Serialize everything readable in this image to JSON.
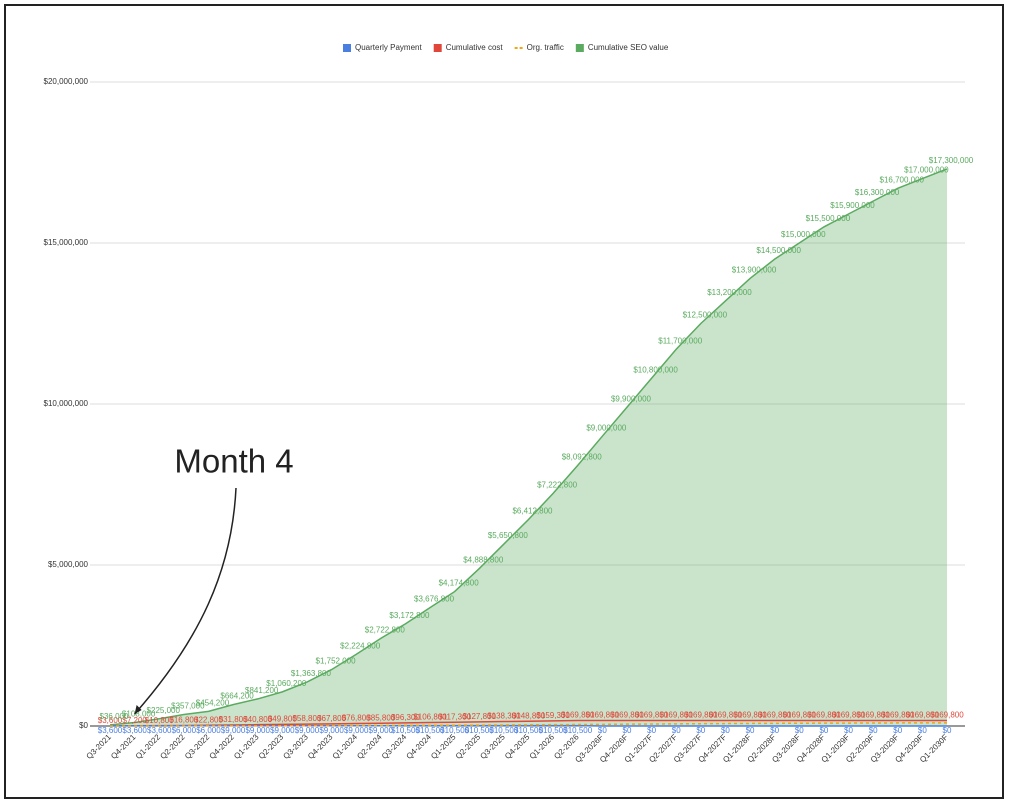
{
  "chart_data": {
    "type": "combo",
    "annotation": "Month 4",
    "categories": [
      "Q3-2021",
      "Q4-2021",
      "Q1-2022",
      "Q2-2022",
      "Q3-2022",
      "Q4-2022",
      "Q1-2023",
      "Q2-2023",
      "Q3-2023",
      "Q4-2023",
      "Q1-2024",
      "Q2-2024",
      "Q3-2024",
      "Q4-2024",
      "Q1-2025",
      "Q2-2025",
      "Q3-2025",
      "Q4-2025",
      "Q1-2026",
      "Q2-2026",
      "Q3-2026F",
      "Q4-2026F",
      "Q1-2027F",
      "Q2-2027F",
      "Q3-2027F",
      "Q4-2027F",
      "Q1-2028F",
      "Q2-2028F",
      "Q3-2028F",
      "Q4-2028F",
      "Q1-2029F",
      "Q2-2029F",
      "Q3-2029F",
      "Q4-2029F",
      "Q1-2030F"
    ],
    "ylim": [
      0,
      20000000
    ],
    "yticks": [
      {
        "value": 0,
        "label": "$0"
      },
      {
        "value": 5000000,
        "label": "$5,000,000"
      },
      {
        "value": 10000000,
        "label": "$10,000,000"
      },
      {
        "value": 15000000,
        "label": "$15,000,000"
      },
      {
        "value": 20000000,
        "label": "$20,000,000"
      }
    ],
    "grid": true,
    "legend": "top",
    "series": [
      {
        "name": "Quarterly Payment",
        "type": "line",
        "color": "#4a7fe0",
        "values": [
          3600,
          3600,
          3600,
          6000,
          6000,
          9000,
          9000,
          9000,
          9000,
          9000,
          9000,
          9000,
          10500,
          10500,
          10500,
          10500,
          10500,
          10500,
          10500,
          10500,
          0,
          0,
          0,
          0,
          0,
          0,
          0,
          0,
          0,
          0,
          0,
          0,
          0,
          0,
          0
        ],
        "value_labels": [
          "$3,600",
          "$3,600",
          "$3,600",
          "$6,000",
          "$6,000",
          "$9,000",
          "$9,000",
          "$9,000",
          "$9,000",
          "$9,000",
          "$9,000",
          "$9,000",
          "$10,500",
          "$10,500",
          "$10,500",
          "$10,500",
          "$10,500",
          "$10,500",
          "$10,500",
          "$10,500",
          "$0",
          "$0",
          "$0",
          "$0",
          "$0",
          "$0",
          "$0",
          "$0",
          "$0",
          "$0",
          "$0",
          "$0",
          "$0",
          "$0",
          "$0"
        ]
      },
      {
        "name": "Cumulative cost",
        "type": "line",
        "color": "#e0473a",
        "values": [
          3600,
          7200,
          10800,
          16800,
          22800,
          31800,
          40800,
          49800,
          58800,
          67800,
          76800,
          85800,
          96300,
          106800,
          117300,
          127800,
          138300,
          148800,
          159300,
          169800,
          169800,
          169800,
          169800,
          169800,
          169800,
          169800,
          169800,
          169800,
          169800,
          169800,
          169800,
          169800,
          169800,
          169800,
          169800
        ],
        "value_labels": [
          "$3,600",
          "$7,200",
          "$10,800",
          "$16,800",
          "$22,800",
          "$31,800",
          "$40,800",
          "$49,800",
          "$58,800",
          "$67,800",
          "$76,800",
          "$85,800",
          "$96,300",
          "$106,800",
          "$117,300",
          "$127,800",
          "$138,300",
          "$148,800",
          "$159,300",
          "$169,800",
          "$169,800",
          "$169,800",
          "$169,800",
          "$169,800",
          "$169,800",
          "$169,800",
          "$169,800",
          "$169,800",
          "$169,800",
          "$169,800",
          "$169,800",
          "$169,800",
          "$169,800",
          "$169,800",
          "$169,800"
        ]
      },
      {
        "name": "Org. traffic",
        "type": "dashed",
        "color": "#f2a516",
        "values": [
          200,
          600,
          1200,
          2000,
          2600,
          3800,
          4800,
          6000,
          7800,
          10000,
          12700,
          15600,
          18100,
          21000,
          23800,
          27900,
          32300,
          36600,
          41300,
          46200,
          51400,
          56600,
          61700,
          66900,
          71400,
          75400,
          79400,
          82900,
          85700,
          88600,
          90900,
          93100,
          95400,
          97100,
          98900
        ]
      },
      {
        "name": "Cumulative SEO value",
        "type": "area",
        "color": "#5aaa5f",
        "values": [
          36000,
          108000,
          225000,
          357000,
          454200,
          664200,
          841200,
          1060200,
          1363800,
          1752000,
          2224800,
          2722800,
          3172800,
          3676800,
          4174800,
          4888800,
          5650800,
          6412800,
          7222800,
          8092800,
          9000000,
          9900000,
          10800000,
          11700000,
          12500000,
          13200000,
          13900000,
          14500000,
          15000000,
          15500000,
          15900000,
          16300000,
          16700000,
          17000000,
          17300000
        ],
        "value_labels": [
          "$36,000",
          "$108,000",
          "$225,000",
          "$357,000",
          "$454,200",
          "$664,200",
          "$841,200",
          "$1,060,200",
          "$1,363,800",
          "$1,752,000",
          "$2,224,800",
          "$2,722,800",
          "$3,172,800",
          "$3,676,800",
          "$4,174,800",
          "$4,888,800",
          "$5,650,800",
          "$6,412,800",
          "$7,222,800",
          "$8,092,800",
          "$9,000,000",
          "$9,900,000",
          "$10,800,000",
          "$11,700,000",
          "$12,500,000",
          "$13,200,000",
          "$13,900,000",
          "$14,500,000",
          "$15,000,000",
          "$15,500,000",
          "$15,900,000",
          "$16,300,000",
          "$16,700,000",
          "$17,000,000",
          "$17,300,000"
        ]
      }
    ]
  }
}
